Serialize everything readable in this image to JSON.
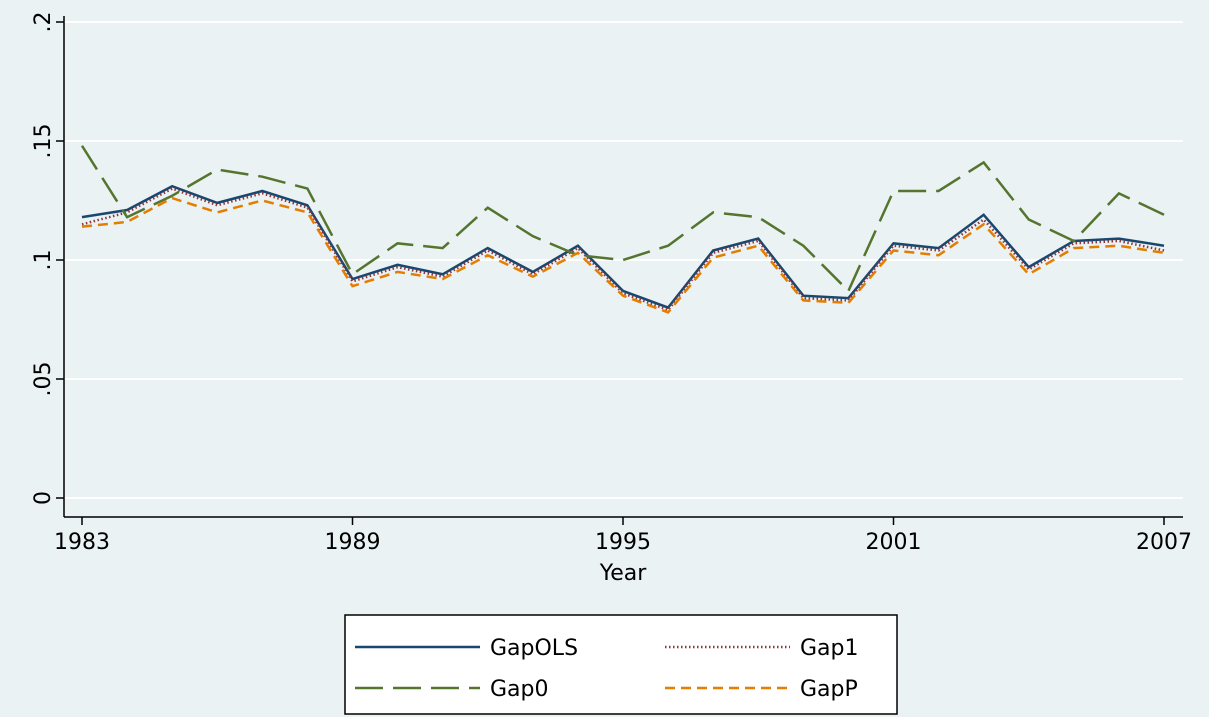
{
  "chart_data": {
    "type": "line",
    "x_label": "Year",
    "x": [
      1983,
      1984,
      1985,
      1986,
      1987,
      1988,
      1989,
      1990,
      1991,
      1992,
      1993,
      1994,
      1995,
      1996,
      1997,
      1998,
      1999,
      2000,
      2001,
      2002,
      2003,
      2004,
      2005,
      2006,
      2007
    ],
    "xlim": [
      1983,
      2007
    ],
    "xticks": [
      1983,
      1989,
      1995,
      2001,
      2007
    ],
    "ylim": [
      0,
      0.2
    ],
    "yticks": [
      0,
      {
        "value": 0.05,
        "label": ".05"
      },
      {
        "value": 0.1,
        "label": ".1"
      },
      {
        "value": 0.15,
        "label": ".15"
      },
      {
        "value": 0.2,
        "label": ".2"
      }
    ],
    "grid": true,
    "legend_position": "bottom",
    "series": [
      {
        "name": "GapOLS",
        "color": "#1a476f",
        "style": "solid",
        "values": [
          0.118,
          0.121,
          0.131,
          0.124,
          0.129,
          0.123,
          0.092,
          0.098,
          0.094,
          0.105,
          0.095,
          0.106,
          0.087,
          0.08,
          0.104,
          0.109,
          0.085,
          0.084,
          0.107,
          0.105,
          0.119,
          0.097,
          0.108,
          0.109,
          0.106
        ]
      },
      {
        "name": "Gap1",
        "color": "#90353b",
        "style": "dot",
        "values": [
          0.115,
          0.12,
          0.13,
          0.123,
          0.128,
          0.122,
          0.091,
          0.097,
          0.093,
          0.104,
          0.094,
          0.105,
          0.086,
          0.079,
          0.103,
          0.108,
          0.084,
          0.083,
          0.106,
          0.104,
          0.117,
          0.096,
          0.107,
          0.108,
          0.104
        ]
      },
      {
        "name": "Gap0",
        "color": "#55752f",
        "style": "longdash",
        "values": [
          0.148,
          0.118,
          0.127,
          0.138,
          0.135,
          0.13,
          0.094,
          0.107,
          0.105,
          0.122,
          0.11,
          0.102,
          0.1,
          0.106,
          0.12,
          0.118,
          0.106,
          0.087,
          0.129,
          0.129,
          0.141,
          0.117,
          0.108,
          0.128,
          0.119
        ]
      },
      {
        "name": "GapP",
        "color": "#e37e00",
        "style": "dash",
        "values": [
          0.114,
          0.116,
          0.126,
          0.12,
          0.125,
          0.12,
          0.089,
          0.095,
          0.092,
          0.102,
          0.093,
          0.103,
          0.085,
          0.078,
          0.101,
          0.106,
          0.083,
          0.082,
          0.104,
          0.102,
          0.115,
          0.094,
          0.105,
          0.106,
          0.103
        ]
      }
    ]
  }
}
